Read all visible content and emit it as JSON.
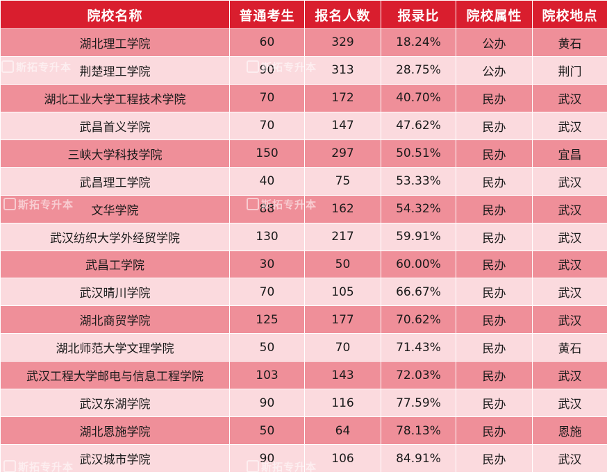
{
  "headers": [
    "院校名称",
    "普通考生",
    "报名人数",
    "报录比",
    "院校属性",
    "院校地点"
  ],
  "rows": [
    [
      "湖北理工学院",
      "60",
      "329",
      "18.24%",
      "公办",
      "黄石"
    ],
    [
      "荆楚理工学院",
      "90",
      "313",
      "28.75%",
      "公办",
      "荆门"
    ],
    [
      "湖北工业大学工程技术学院",
      "70",
      "172",
      "40.70%",
      "民办",
      "武汉"
    ],
    [
      "武昌首义学院",
      "70",
      "147",
      "47.62%",
      "民办",
      "武汉"
    ],
    [
      "三峡大学科技学院",
      "150",
      "297",
      "50.51%",
      "民办",
      "宜昌"
    ],
    [
      "武昌理工学院",
      "40",
      "75",
      "53.33%",
      "民办",
      "武汉"
    ],
    [
      "文华学院",
      "88",
      "162",
      "54.32%",
      "民办",
      "武汉"
    ],
    [
      "武汉纺织大学外经贸学院",
      "130",
      "217",
      "59.91%",
      "民办",
      "武汉"
    ],
    [
      "武昌工学院",
      "30",
      "50",
      "60.00%",
      "民办",
      "武汉"
    ],
    [
      "武汉晴川学院",
      "70",
      "105",
      "66.67%",
      "民办",
      "武汉"
    ],
    [
      "湖北商贸学院",
      "125",
      "177",
      "70.62%",
      "民办",
      "武汉"
    ],
    [
      "湖北师范大学文理学院",
      "50",
      "70",
      "71.43%",
      "民办",
      "黄石"
    ],
    [
      "武汉工程大学邮电与信息工程学院",
      "103",
      "143",
      "72.03%",
      "民办",
      "武汉"
    ],
    [
      "武汉东湖学院",
      "90",
      "116",
      "77.59%",
      "民办",
      "武汉"
    ],
    [
      "湖北恩施学院",
      "50",
      "64",
      "78.13%",
      "民办",
      "恩施"
    ],
    [
      "武汉城市学院",
      "90",
      "106",
      "84.91%",
      "民办",
      "武汉"
    ]
  ],
  "watermark": "斯拓专升本",
  "colors": {
    "header": "#d91e2e",
    "row_dark": "#ef8f99",
    "row_light": "#fbdade",
    "header_text": "#ffffff"
  }
}
